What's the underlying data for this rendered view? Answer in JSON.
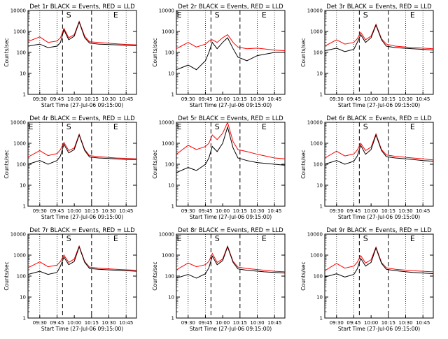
{
  "chart_data": {
    "type": "line",
    "grid": false,
    "ylabel": "Counts/sec",
    "xlabel": "Start Time (27-Jul-06 09:15:00)",
    "xticks": [
      "09:30",
      "09:45",
      "10:00",
      "10:15",
      "10:30",
      "10:45"
    ],
    "yticks": [
      "1",
      "10",
      "100",
      "1000",
      "10000"
    ],
    "yscale": "log",
    "ylim": [
      1,
      10000
    ],
    "xlim_minutes": [
      9.33,
      10.9
    ],
    "series_names": [
      "BLACK = Events",
      "RED = LLD"
    ],
    "colors": {
      "events": "#000000",
      "lld": "#ff0000"
    },
    "panels": [
      {
        "title": "Det 1r BLACK = Events, RED = LLD",
        "markers": [
          "S",
          "E"
        ],
        "events": [
          [
            9.33,
            200
          ],
          [
            9.5,
            250
          ],
          [
            9.62,
            170
          ],
          [
            9.75,
            200
          ],
          [
            9.8,
            300
          ],
          [
            9.85,
            1200
          ],
          [
            9.92,
            400
          ],
          [
            10,
            600
          ],
          [
            10.07,
            2800
          ],
          [
            10.15,
            500
          ],
          [
            10.22,
            280
          ],
          [
            10.35,
            250
          ],
          [
            10.6,
            230
          ],
          [
            10.75,
            220
          ],
          [
            10.9,
            210
          ]
        ],
        "lld": [
          [
            9.33,
            330
          ],
          [
            9.5,
            550
          ],
          [
            9.62,
            300
          ],
          [
            9.75,
            350
          ],
          [
            9.8,
            500
          ],
          [
            9.85,
            1400
          ],
          [
            9.92,
            500
          ],
          [
            10,
            700
          ],
          [
            10.07,
            3000
          ],
          [
            10.15,
            600
          ],
          [
            10.22,
            320
          ],
          [
            10.35,
            300
          ],
          [
            10.6,
            260
          ],
          [
            10.75,
            240
          ],
          [
            10.9,
            230
          ]
        ]
      },
      {
        "title": "Det 2r BLACK = Events, RED = LLD",
        "markers": [
          "E",
          "S",
          "E"
        ],
        "events": [
          [
            9.33,
            15
          ],
          [
            9.5,
            25
          ],
          [
            9.62,
            15
          ],
          [
            9.75,
            40
          ],
          [
            9.8,
            100
          ],
          [
            9.85,
            300
          ],
          [
            9.92,
            150
          ],
          [
            10,
            300
          ],
          [
            10.07,
            500
          ],
          [
            10.15,
            150
          ],
          [
            10.22,
            60
          ],
          [
            10.35,
            40
          ],
          [
            10.5,
            70
          ],
          [
            10.75,
            100
          ],
          [
            10.9,
            100
          ]
        ],
        "lld": [
          [
            9.33,
            150
          ],
          [
            9.5,
            300
          ],
          [
            9.62,
            180
          ],
          [
            9.75,
            250
          ],
          [
            9.8,
            350
          ],
          [
            9.85,
            400
          ],
          [
            9.92,
            300
          ],
          [
            10,
            500
          ],
          [
            10.07,
            700
          ],
          [
            10.15,
            300
          ],
          [
            10.22,
            180
          ],
          [
            10.35,
            150
          ],
          [
            10.5,
            160
          ],
          [
            10.75,
            130
          ],
          [
            10.9,
            120
          ]
        ]
      },
      {
        "title": "Det 3r BLACK = Events, RED = LLD",
        "markers": [
          "S",
          "E"
        ],
        "events": [
          [
            9.33,
            120
          ],
          [
            9.5,
            160
          ],
          [
            9.62,
            110
          ],
          [
            9.75,
            140
          ],
          [
            9.8,
            300
          ],
          [
            9.85,
            700
          ],
          [
            9.92,
            300
          ],
          [
            10,
            500
          ],
          [
            10.07,
            2000
          ],
          [
            10.15,
            400
          ],
          [
            10.22,
            200
          ],
          [
            10.35,
            170
          ],
          [
            10.6,
            150
          ],
          [
            10.75,
            140
          ],
          [
            10.9,
            130
          ]
        ],
        "lld": [
          [
            9.33,
            200
          ],
          [
            9.5,
            400
          ],
          [
            9.62,
            250
          ],
          [
            9.75,
            300
          ],
          [
            9.8,
            450
          ],
          [
            9.85,
            900
          ],
          [
            9.92,
            400
          ],
          [
            10,
            600
          ],
          [
            10.07,
            2200
          ],
          [
            10.15,
            450
          ],
          [
            10.22,
            250
          ],
          [
            10.35,
            200
          ],
          [
            10.6,
            170
          ],
          [
            10.75,
            160
          ],
          [
            10.9,
            150
          ]
        ]
      },
      {
        "title": "Det 4r BLACK = Events, RED = LLD",
        "markers": [
          "E",
          "S",
          "E"
        ],
        "events": [
          [
            9.33,
            100
          ],
          [
            9.5,
            150
          ],
          [
            9.62,
            100
          ],
          [
            9.75,
            150
          ],
          [
            9.8,
            250
          ],
          [
            9.85,
            900
          ],
          [
            9.92,
            350
          ],
          [
            10,
            500
          ],
          [
            10.07,
            2500
          ],
          [
            10.15,
            450
          ],
          [
            10.22,
            220
          ],
          [
            10.35,
            200
          ],
          [
            10.6,
            180
          ],
          [
            10.75,
            170
          ],
          [
            10.9,
            170
          ]
        ],
        "lld": [
          [
            9.33,
            220
          ],
          [
            9.5,
            450
          ],
          [
            9.62,
            260
          ],
          [
            9.75,
            320
          ],
          [
            9.8,
            500
          ],
          [
            9.85,
            1100
          ],
          [
            9.92,
            450
          ],
          [
            10,
            600
          ],
          [
            10.07,
            2700
          ],
          [
            10.15,
            500
          ],
          [
            10.22,
            260
          ],
          [
            10.35,
            230
          ],
          [
            10.6,
            200
          ],
          [
            10.75,
            190
          ],
          [
            10.9,
            180
          ]
        ]
      },
      {
        "title": "Det 5r BLACK = Events, RED = LLD",
        "markers": [
          "E",
          "S",
          "E"
        ],
        "events": [
          [
            9.33,
            40
          ],
          [
            9.5,
            70
          ],
          [
            9.62,
            50
          ],
          [
            9.75,
            100
          ],
          [
            9.8,
            200
          ],
          [
            9.85,
            700
          ],
          [
            9.92,
            400
          ],
          [
            10,
            1000
          ],
          [
            10.07,
            6000
          ],
          [
            10.15,
            600
          ],
          [
            10.22,
            200
          ],
          [
            10.35,
            150
          ],
          [
            10.5,
            120
          ],
          [
            10.75,
            100
          ],
          [
            10.9,
            90
          ]
        ],
        "lld": [
          [
            9.33,
            300
          ],
          [
            9.5,
            800
          ],
          [
            9.62,
            500
          ],
          [
            9.75,
            700
          ],
          [
            9.8,
            1000
          ],
          [
            9.85,
            2500
          ],
          [
            9.92,
            1500
          ],
          [
            10,
            3000
          ],
          [
            10.07,
            10000
          ],
          [
            10.15,
            1200
          ],
          [
            10.22,
            500
          ],
          [
            10.35,
            400
          ],
          [
            10.5,
            300
          ],
          [
            10.75,
            200
          ],
          [
            10.9,
            180
          ]
        ]
      },
      {
        "title": "Det 6r BLACK = Events, RED = LLD",
        "markers": [
          "S",
          "E"
        ],
        "events": [
          [
            9.33,
            100
          ],
          [
            9.5,
            150
          ],
          [
            9.62,
            100
          ],
          [
            9.75,
            140
          ],
          [
            9.8,
            250
          ],
          [
            9.85,
            800
          ],
          [
            9.92,
            300
          ],
          [
            10,
            500
          ],
          [
            10.07,
            2500
          ],
          [
            10.15,
            450
          ],
          [
            10.22,
            230
          ],
          [
            10.35,
            200
          ],
          [
            10.6,
            170
          ],
          [
            10.75,
            150
          ],
          [
            10.9,
            140
          ]
        ],
        "lld": [
          [
            9.33,
            200
          ],
          [
            9.5,
            420
          ],
          [
            9.62,
            250
          ],
          [
            9.75,
            310
          ],
          [
            9.8,
            480
          ],
          [
            9.85,
            1000
          ],
          [
            9.92,
            450
          ],
          [
            10,
            650
          ],
          [
            10.07,
            2800
          ],
          [
            10.15,
            500
          ],
          [
            10.22,
            280
          ],
          [
            10.35,
            240
          ],
          [
            10.6,
            200
          ],
          [
            10.75,
            180
          ],
          [
            10.9,
            160
          ]
        ]
      },
      {
        "title": "Det 7r BLACK = Events, RED = LLD",
        "markers": [
          "S",
          "E"
        ],
        "events": [
          [
            9.33,
            120
          ],
          [
            9.5,
            170
          ],
          [
            9.62,
            120
          ],
          [
            9.75,
            150
          ],
          [
            9.8,
            300
          ],
          [
            9.85,
            800
          ],
          [
            9.92,
            350
          ],
          [
            10,
            500
          ],
          [
            10.07,
            2500
          ],
          [
            10.15,
            450
          ],
          [
            10.22,
            230
          ],
          [
            10.35,
            210
          ],
          [
            10.6,
            190
          ],
          [
            10.75,
            180
          ],
          [
            10.9,
            170
          ]
        ],
        "lld": [
          [
            9.33,
            250
          ],
          [
            9.5,
            480
          ],
          [
            9.62,
            280
          ],
          [
            9.75,
            330
          ],
          [
            9.8,
            500
          ],
          [
            9.85,
            1000
          ],
          [
            9.92,
            450
          ],
          [
            10,
            650
          ],
          [
            10.07,
            2700
          ],
          [
            10.15,
            500
          ],
          [
            10.22,
            270
          ],
          [
            10.35,
            240
          ],
          [
            10.6,
            210
          ],
          [
            10.75,
            200
          ],
          [
            10.9,
            190
          ]
        ]
      },
      {
        "title": "Det 8r BLACK = Events, RED = LLD",
        "markers": [
          "E",
          "S",
          "E"
        ],
        "events": [
          [
            9.33,
            80
          ],
          [
            9.5,
            120
          ],
          [
            9.62,
            80
          ],
          [
            9.75,
            130
          ],
          [
            9.8,
            250
          ],
          [
            9.85,
            900
          ],
          [
            9.92,
            350
          ],
          [
            10,
            550
          ],
          [
            10.07,
            2500
          ],
          [
            10.15,
            450
          ],
          [
            10.22,
            220
          ],
          [
            10.35,
            190
          ],
          [
            10.6,
            160
          ],
          [
            10.75,
            150
          ],
          [
            10.9,
            140
          ]
        ],
        "lld": [
          [
            9.33,
            200
          ],
          [
            9.5,
            420
          ],
          [
            9.62,
            280
          ],
          [
            9.75,
            350
          ],
          [
            9.8,
            500
          ],
          [
            9.85,
            1200
          ],
          [
            9.92,
            450
          ],
          [
            10,
            650
          ],
          [
            10.07,
            2700
          ],
          [
            10.15,
            500
          ],
          [
            10.22,
            270
          ],
          [
            10.35,
            230
          ],
          [
            10.6,
            190
          ],
          [
            10.75,
            170
          ],
          [
            10.9,
            160
          ]
        ]
      },
      {
        "title": "Det 9r BLACK = Events, RED = LLD",
        "markers": [
          "S",
          "E"
        ],
        "events": [
          [
            9.33,
            90
          ],
          [
            9.5,
            130
          ],
          [
            9.62,
            90
          ],
          [
            9.75,
            120
          ],
          [
            9.8,
            220
          ],
          [
            9.85,
            700
          ],
          [
            9.92,
            300
          ],
          [
            10,
            450
          ],
          [
            10.07,
            2200
          ],
          [
            10.15,
            400
          ],
          [
            10.22,
            210
          ],
          [
            10.35,
            180
          ],
          [
            10.6,
            150
          ],
          [
            10.75,
            140
          ],
          [
            10.9,
            130
          ]
        ],
        "lld": [
          [
            9.33,
            180
          ],
          [
            9.5,
            400
          ],
          [
            9.62,
            240
          ],
          [
            9.75,
            300
          ],
          [
            9.8,
            460
          ],
          [
            9.85,
            950
          ],
          [
            9.92,
            420
          ],
          [
            10,
            600
          ],
          [
            10.07,
            2400
          ],
          [
            10.15,
            450
          ],
          [
            10.22,
            250
          ],
          [
            10.35,
            210
          ],
          [
            10.6,
            180
          ],
          [
            10.75,
            170
          ],
          [
            10.9,
            160
          ]
        ]
      }
    ]
  }
}
